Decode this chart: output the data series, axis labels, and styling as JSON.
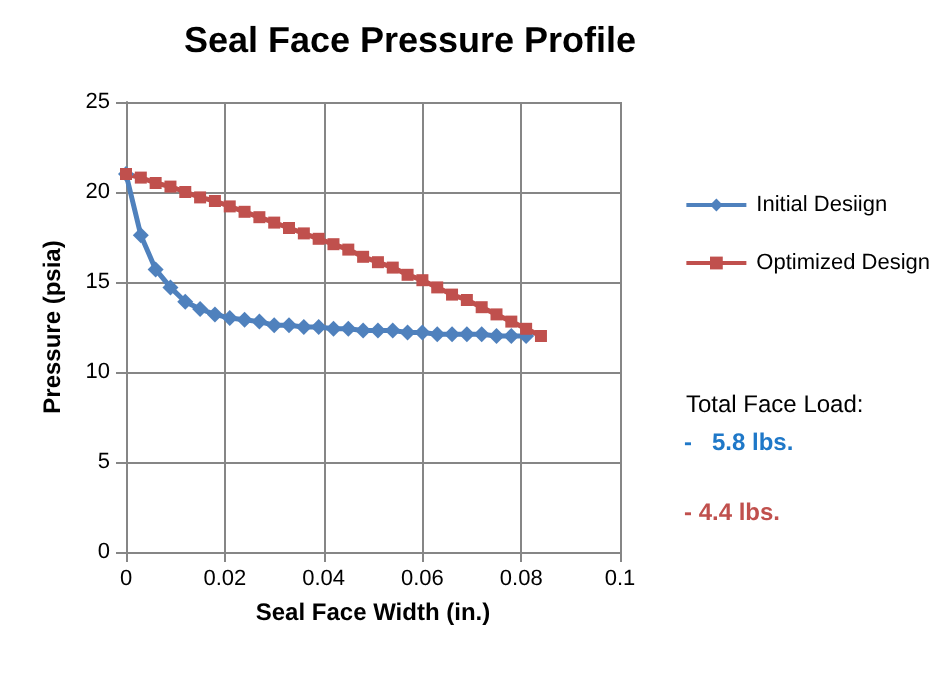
{
  "chart_data": {
    "type": "line",
    "title": "Seal Face Pressure Profile",
    "xlabel": "Seal Face Width (in.)",
    "ylabel": "Pressure (psia)",
    "xlim": [
      0,
      0.1
    ],
    "xticks": [
      0,
      0.02,
      0.04,
      0.06,
      0.08,
      0.1
    ],
    "ylim": [
      0,
      25
    ],
    "yticks": [
      0,
      5,
      10,
      15,
      20,
      25
    ],
    "grid": true,
    "legend": "right",
    "series": [
      {
        "name": "Initial Desiign",
        "color": "#4f81bd",
        "marker": "diamond",
        "x": [
          0,
          0.003,
          0.006,
          0.009,
          0.012,
          0.015,
          0.018,
          0.021,
          0.024,
          0.027,
          0.03,
          0.033,
          0.036,
          0.039,
          0.042,
          0.045,
          0.048,
          0.051,
          0.054,
          0.057,
          0.06,
          0.063,
          0.066,
          0.069,
          0.072,
          0.075,
          0.078,
          0.081
        ],
        "values": [
          21,
          17.6,
          15.7,
          14.7,
          13.9,
          13.5,
          13.2,
          13,
          12.9,
          12.8,
          12.6,
          12.6,
          12.5,
          12.5,
          12.4,
          12.4,
          12.3,
          12.3,
          12.3,
          12.2,
          12.2,
          12.1,
          12.1,
          12.1,
          12.1,
          12,
          12,
          12
        ]
      },
      {
        "name": "Optimized Design",
        "color": "#c0504d",
        "marker": "square",
        "x": [
          0,
          0.003,
          0.006,
          0.009,
          0.012,
          0.015,
          0.018,
          0.021,
          0.024,
          0.027,
          0.03,
          0.033,
          0.036,
          0.039,
          0.042,
          0.045,
          0.048,
          0.051,
          0.054,
          0.057,
          0.06,
          0.063,
          0.066,
          0.069,
          0.072,
          0.075,
          0.078,
          0.081,
          0.084
        ],
        "values": [
          21,
          20.8,
          20.5,
          20.3,
          20,
          19.7,
          19.5,
          19.2,
          18.9,
          18.6,
          18.3,
          18,
          17.7,
          17.4,
          17.1,
          16.8,
          16.4,
          16.1,
          15.8,
          15.4,
          15.1,
          14.7,
          14.3,
          14,
          13.6,
          13.2,
          12.8,
          12.4,
          12
        ]
      }
    ],
    "annotations": [
      "Total Face Load:",
      "-   5.8 lbs.",
      "- 4.4 lbs."
    ]
  }
}
